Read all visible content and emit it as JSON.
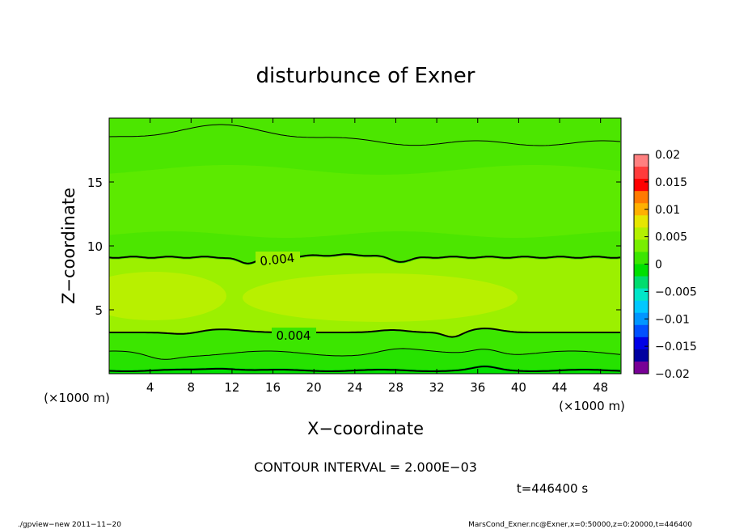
{
  "chart_data": {
    "type": "heatmap",
    "title": "disturbunce of Exner",
    "xlabel": "X−coordinate",
    "ylabel": "Z−coordinate",
    "x_unit_left": "(×1000 m)",
    "x_unit_right": "(×1000 m)",
    "xlim": [
      0,
      50
    ],
    "ylim": [
      0,
      20
    ],
    "x_ticks": [
      4,
      8,
      12,
      16,
      20,
      24,
      28,
      32,
      36,
      40,
      44,
      48
    ],
    "y_ticks": [
      5,
      10,
      15
    ],
    "colorbar": {
      "ticks": [
        "0.02",
        "0.015",
        "0.01",
        "0.005",
        "0",
        "−0.005",
        "−0.01",
        "−0.015",
        "−0.02"
      ],
      "colors": [
        "#ff8080",
        "#ff3c3c",
        "#ff0000",
        "#ff7a00",
        "#ffb000",
        "#e6e600",
        "#b4f000",
        "#78ee00",
        "#3ce600",
        "#00e000",
        "#00dc6e",
        "#00e6c8",
        "#00c8ff",
        "#0096ff",
        "#0050ff",
        "#0000e6",
        "#0000a0",
        "#780096"
      ]
    },
    "contour_labels": [
      "0.004",
      "0.004"
    ],
    "contour_interval": "CONTOUR INTERVAL = 2.000E−03",
    "time_label": "t=446400 s",
    "footer_left": "./gpview−new   2011−11−20",
    "footer_right": "MarsCond_Exner.nc@Exner,x=0:50000,z=0:20000,t=446400",
    "fill_colors": {
      "base": "#4ce600",
      "upper_band": "#5cea00",
      "mid_band": "#9cf000",
      "core": "#b8f000",
      "low_band": "#3ce600",
      "bottom": "#00e000"
    }
  }
}
